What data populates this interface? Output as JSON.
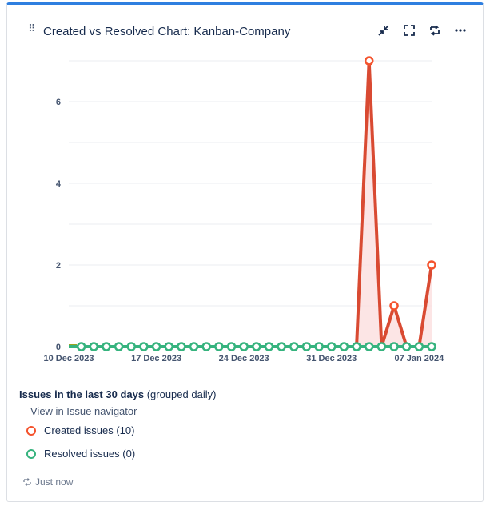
{
  "header": {
    "title": "Created vs Resolved Chart: Kanban-Company"
  },
  "chart_data": {
    "type": "line",
    "x": [
      "10 Dec 2023",
      "11 Dec 2023",
      "12 Dec 2023",
      "13 Dec 2023",
      "14 Dec 2023",
      "15 Dec 2023",
      "16 Dec 2023",
      "17 Dec 2023",
      "18 Dec 2023",
      "19 Dec 2023",
      "20 Dec 2023",
      "21 Dec 2023",
      "22 Dec 2023",
      "23 Dec 2023",
      "24 Dec 2023",
      "25 Dec 2023",
      "26 Dec 2023",
      "27 Dec 2023",
      "28 Dec 2023",
      "29 Dec 2023",
      "30 Dec 2023",
      "31 Dec 2023",
      "01 Jan 2024",
      "02 Jan 2024",
      "03 Jan 2024",
      "04 Jan 2024",
      "05 Jan 2024",
      "06 Jan 2024",
      "07 Jan 2024",
      "08 Jan 2024"
    ],
    "x_tick_labels": [
      "10 Dec 2023",
      "17 Dec 2023",
      "24 Dec 2023",
      "31 Dec 2023",
      "07 Jan 2024"
    ],
    "series": [
      {
        "name": "Created issues",
        "color": "#f4532d",
        "line_color": "#d94a32",
        "fill": "#fbdede",
        "values": [
          0,
          0,
          0,
          0,
          0,
          0,
          0,
          0,
          0,
          0,
          0,
          0,
          0,
          0,
          0,
          0,
          0,
          0,
          0,
          0,
          0,
          0,
          0,
          0,
          7,
          0,
          1,
          0,
          0,
          2
        ]
      },
      {
        "name": "Resolved issues",
        "color": "#36b37e",
        "line_color": "#36b37e",
        "values": [
          0,
          0,
          0,
          0,
          0,
          0,
          0,
          0,
          0,
          0,
          0,
          0,
          0,
          0,
          0,
          0,
          0,
          0,
          0,
          0,
          0,
          0,
          0,
          0,
          0,
          0,
          0,
          0,
          0,
          0
        ]
      }
    ],
    "ylim": [
      0,
      7
    ],
    "y_ticks": [
      0,
      2,
      4,
      6
    ],
    "grid": true
  },
  "legend": {
    "heading": "Issues in the last 30 days",
    "subheading": "(grouped daily)",
    "link": "View in Issue navigator",
    "created": "Created issues (10)",
    "resolved": "Resolved issues (0)"
  },
  "footer": {
    "status": "Just now"
  },
  "colors": {
    "accent": "#2f7fe0",
    "created": "#f4532d",
    "resolved": "#36b37e"
  }
}
